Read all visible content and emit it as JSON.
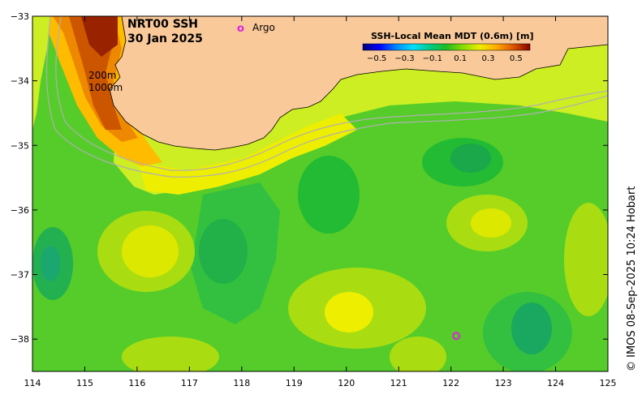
{
  "map": {
    "title_line1": "NRT00 SSH",
    "title_line2": "30 Jan 2025",
    "legend_marker": "o",
    "legend_label": "Argo",
    "depth_label_1": "200m",
    "depth_label_2": "1000m",
    "credit": "© IMOS 08-Sep-2025 10:24 Hobart",
    "x_ticks": [
      "114",
      "115",
      "116",
      "117",
      "118",
      "119",
      "120",
      "121",
      "122",
      "123",
      "124",
      "125"
    ],
    "y_ticks": [
      "−33",
      "−34",
      "−35",
      "−36",
      "−37",
      "−38"
    ],
    "lon_range": [
      114,
      125
    ],
    "lat_range": [
      -38.5,
      -33
    ],
    "colors": {
      "land": "#f9c99a",
      "ocean_base": "#55cc2a",
      "argo": "#e020e0"
    },
    "argo_float": {
      "lon": 122.1,
      "lat": -37.95
    }
  },
  "colorbar": {
    "title": "SSH-Local Mean MDT (0.6m) [m]",
    "ticks": [
      "−0.5",
      "−0.3",
      "−0.1",
      "0.1",
      "0.3",
      "0.5"
    ],
    "range": [
      -0.6,
      0.6
    ],
    "stops": [
      "#00007a",
      "#0000ff",
      "#0088ff",
      "#00e0ff",
      "#00cc88",
      "#22bb22",
      "#88dd00",
      "#eeee00",
      "#ffaa00",
      "#dd5500",
      "#880000"
    ]
  }
}
